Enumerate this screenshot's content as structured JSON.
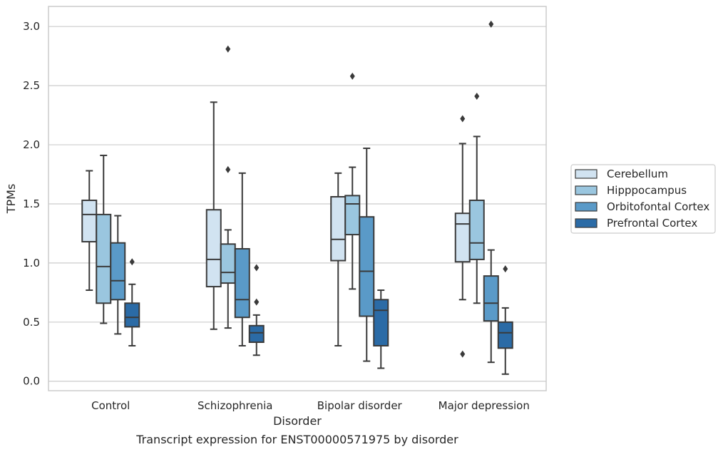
{
  "chart_data": {
    "type": "box",
    "title": "Transcript expression for ENST00000571975 by disorder",
    "xlabel": "Disorder",
    "ylabel": "TPMs",
    "ylim": [
      -0.08,
      3.17
    ],
    "yticks": [
      "0.0",
      "0.5",
      "1.0",
      "1.5",
      "2.0",
      "2.5",
      "3.0"
    ],
    "grid": "horizontal",
    "legend_position": "right",
    "categories": [
      "Control",
      "Schizophrenia",
      "Bipolar disorder",
      "Major depression"
    ],
    "series": [
      {
        "name": "Cerebellum",
        "color": "#d1e3f1",
        "boxes": [
          {
            "q1": 1.18,
            "median": 1.41,
            "q3": 1.53,
            "whisker_low": 0.77,
            "whisker_high": 1.78,
            "outliers": []
          },
          {
            "q1": 0.8,
            "median": 1.03,
            "q3": 1.45,
            "whisker_low": 0.44,
            "whisker_high": 2.36,
            "outliers": []
          },
          {
            "q1": 1.02,
            "median": 1.2,
            "q3": 1.56,
            "whisker_low": 0.3,
            "whisker_high": 1.76,
            "outliers": []
          },
          {
            "q1": 1.01,
            "median": 1.33,
            "q3": 1.42,
            "whisker_low": 0.69,
            "whisker_high": 2.01,
            "outliers": [
              2.22,
              0.23
            ]
          }
        ]
      },
      {
        "name": "Hipppocampus",
        "color": "#9ac6df",
        "boxes": [
          {
            "q1": 0.66,
            "median": 0.97,
            "q3": 1.41,
            "whisker_low": 0.49,
            "whisker_high": 1.91,
            "outliers": []
          },
          {
            "q1": 0.83,
            "median": 0.92,
            "q3": 1.16,
            "whisker_low": 0.45,
            "whisker_high": 1.28,
            "outliers": [
              2.81,
              1.79
            ]
          },
          {
            "q1": 1.24,
            "median": 1.5,
            "q3": 1.57,
            "whisker_low": 0.78,
            "whisker_high": 1.81,
            "outliers": [
              2.58
            ]
          },
          {
            "q1": 1.03,
            "median": 1.17,
            "q3": 1.53,
            "whisker_low": 0.66,
            "whisker_high": 2.07,
            "outliers": [
              2.41
            ]
          }
        ]
      },
      {
        "name": "Orbitofontal Cortex",
        "color": "#5a9ac8",
        "boxes": [
          {
            "q1": 0.69,
            "median": 0.85,
            "q3": 1.17,
            "whisker_low": 0.4,
            "whisker_high": 1.4,
            "outliers": []
          },
          {
            "q1": 0.54,
            "median": 0.69,
            "q3": 1.12,
            "whisker_low": 0.3,
            "whisker_high": 1.76,
            "outliers": []
          },
          {
            "q1": 0.55,
            "median": 0.93,
            "q3": 1.39,
            "whisker_low": 0.17,
            "whisker_high": 1.97,
            "outliers": []
          },
          {
            "q1": 0.51,
            "median": 0.66,
            "q3": 0.89,
            "whisker_low": 0.16,
            "whisker_high": 1.11,
            "outliers": [
              3.02
            ]
          }
        ]
      },
      {
        "name": "Prefrontal Cortex",
        "color": "#2b6ba6",
        "boxes": [
          {
            "q1": 0.46,
            "median": 0.54,
            "q3": 0.66,
            "whisker_low": 0.3,
            "whisker_high": 0.82,
            "outliers": [
              1.01
            ]
          },
          {
            "q1": 0.33,
            "median": 0.41,
            "q3": 0.47,
            "whisker_low": 0.22,
            "whisker_high": 0.56,
            "outliers": [
              0.96,
              0.67
            ]
          },
          {
            "q1": 0.3,
            "median": 0.6,
            "q3": 0.69,
            "whisker_low": 0.11,
            "whisker_high": 0.77,
            "outliers": []
          },
          {
            "q1": 0.28,
            "median": 0.41,
            "q3": 0.5,
            "whisker_low": 0.06,
            "whisker_high": 0.62,
            "outliers": [
              0.95
            ]
          }
        ]
      }
    ]
  }
}
